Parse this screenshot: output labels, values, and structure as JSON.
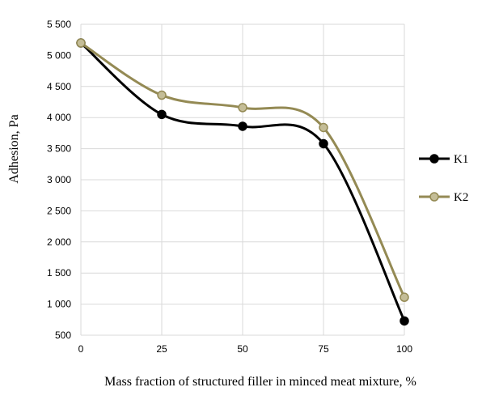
{
  "chart_data": {
    "type": "line",
    "xlabel": "Mass fraction of structured filler  in  minced meat mixture,  %",
    "ylabel": "Adhesion, Pa",
    "x": [
      0,
      25,
      50,
      75,
      100
    ],
    "x_tick_labels": [
      "0",
      "25",
      "50",
      "75",
      "100"
    ],
    "xlim": [
      0,
      100
    ],
    "ylim": [
      500,
      5500
    ],
    "y_ticks": [
      500,
      1000,
      1500,
      2000,
      2500,
      3000,
      3500,
      4000,
      4500,
      5000,
      5500
    ],
    "y_tick_labels": [
      "500",
      "1 000",
      "1 500",
      "2 000",
      "2 500",
      "3 000",
      "3 500",
      "4 000",
      "4 500",
      "5 000",
      "5 500"
    ],
    "grid": true,
    "legend_position": "right",
    "series": [
      {
        "name": "K1",
        "color": "#000000",
        "marker_fill": "#000000",
        "values": [
          5200,
          4050,
          3860,
          3580,
          730
        ]
      },
      {
        "name": "K2",
        "color": "#948a54",
        "marker_fill": "#c4bd97",
        "values": [
          5200,
          4360,
          4160,
          3840,
          1110
        ]
      }
    ]
  }
}
